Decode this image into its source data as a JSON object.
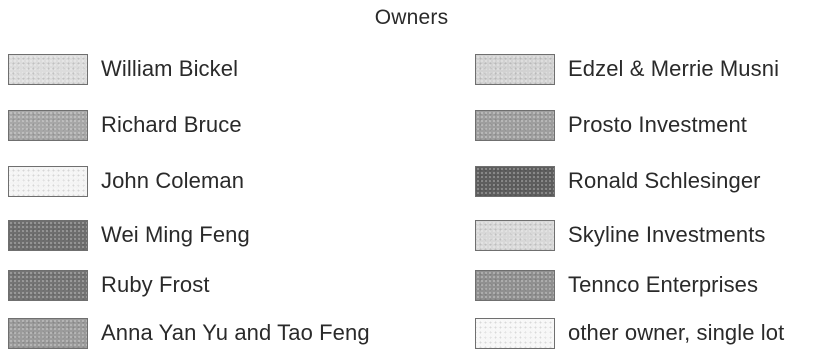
{
  "legend": {
    "title": "Owners",
    "left_column": [
      {
        "label": "William Bickel",
        "color": "#dcdcdc"
      },
      {
        "label": "Richard Bruce",
        "color": "#a7a7a7"
      },
      {
        "label": "John Coleman",
        "color": "#f4f4f4"
      },
      {
        "label": "Wei Ming Feng",
        "color": "#6e6e6e"
      },
      {
        "label": "Ruby Frost",
        "color": "#747474"
      },
      {
        "label": "Anna Yan Yu and Tao Feng",
        "color": "#9b9b9b"
      }
    ],
    "right_column": [
      {
        "label": "Edzel & Merrie Musni",
        "color": "#d2d2d2"
      },
      {
        "label": "Prosto Investment",
        "color": "#9e9e9e"
      },
      {
        "label": "Ronald Schlesinger",
        "color": "#5e5e5e"
      },
      {
        "label": "Skyline Investments",
        "color": "#d8d8d8"
      },
      {
        "label": "Tennco Enterprises",
        "color": "#909090"
      },
      {
        "label": "other owner, single lot",
        "color": "#f7f7f7"
      }
    ]
  }
}
